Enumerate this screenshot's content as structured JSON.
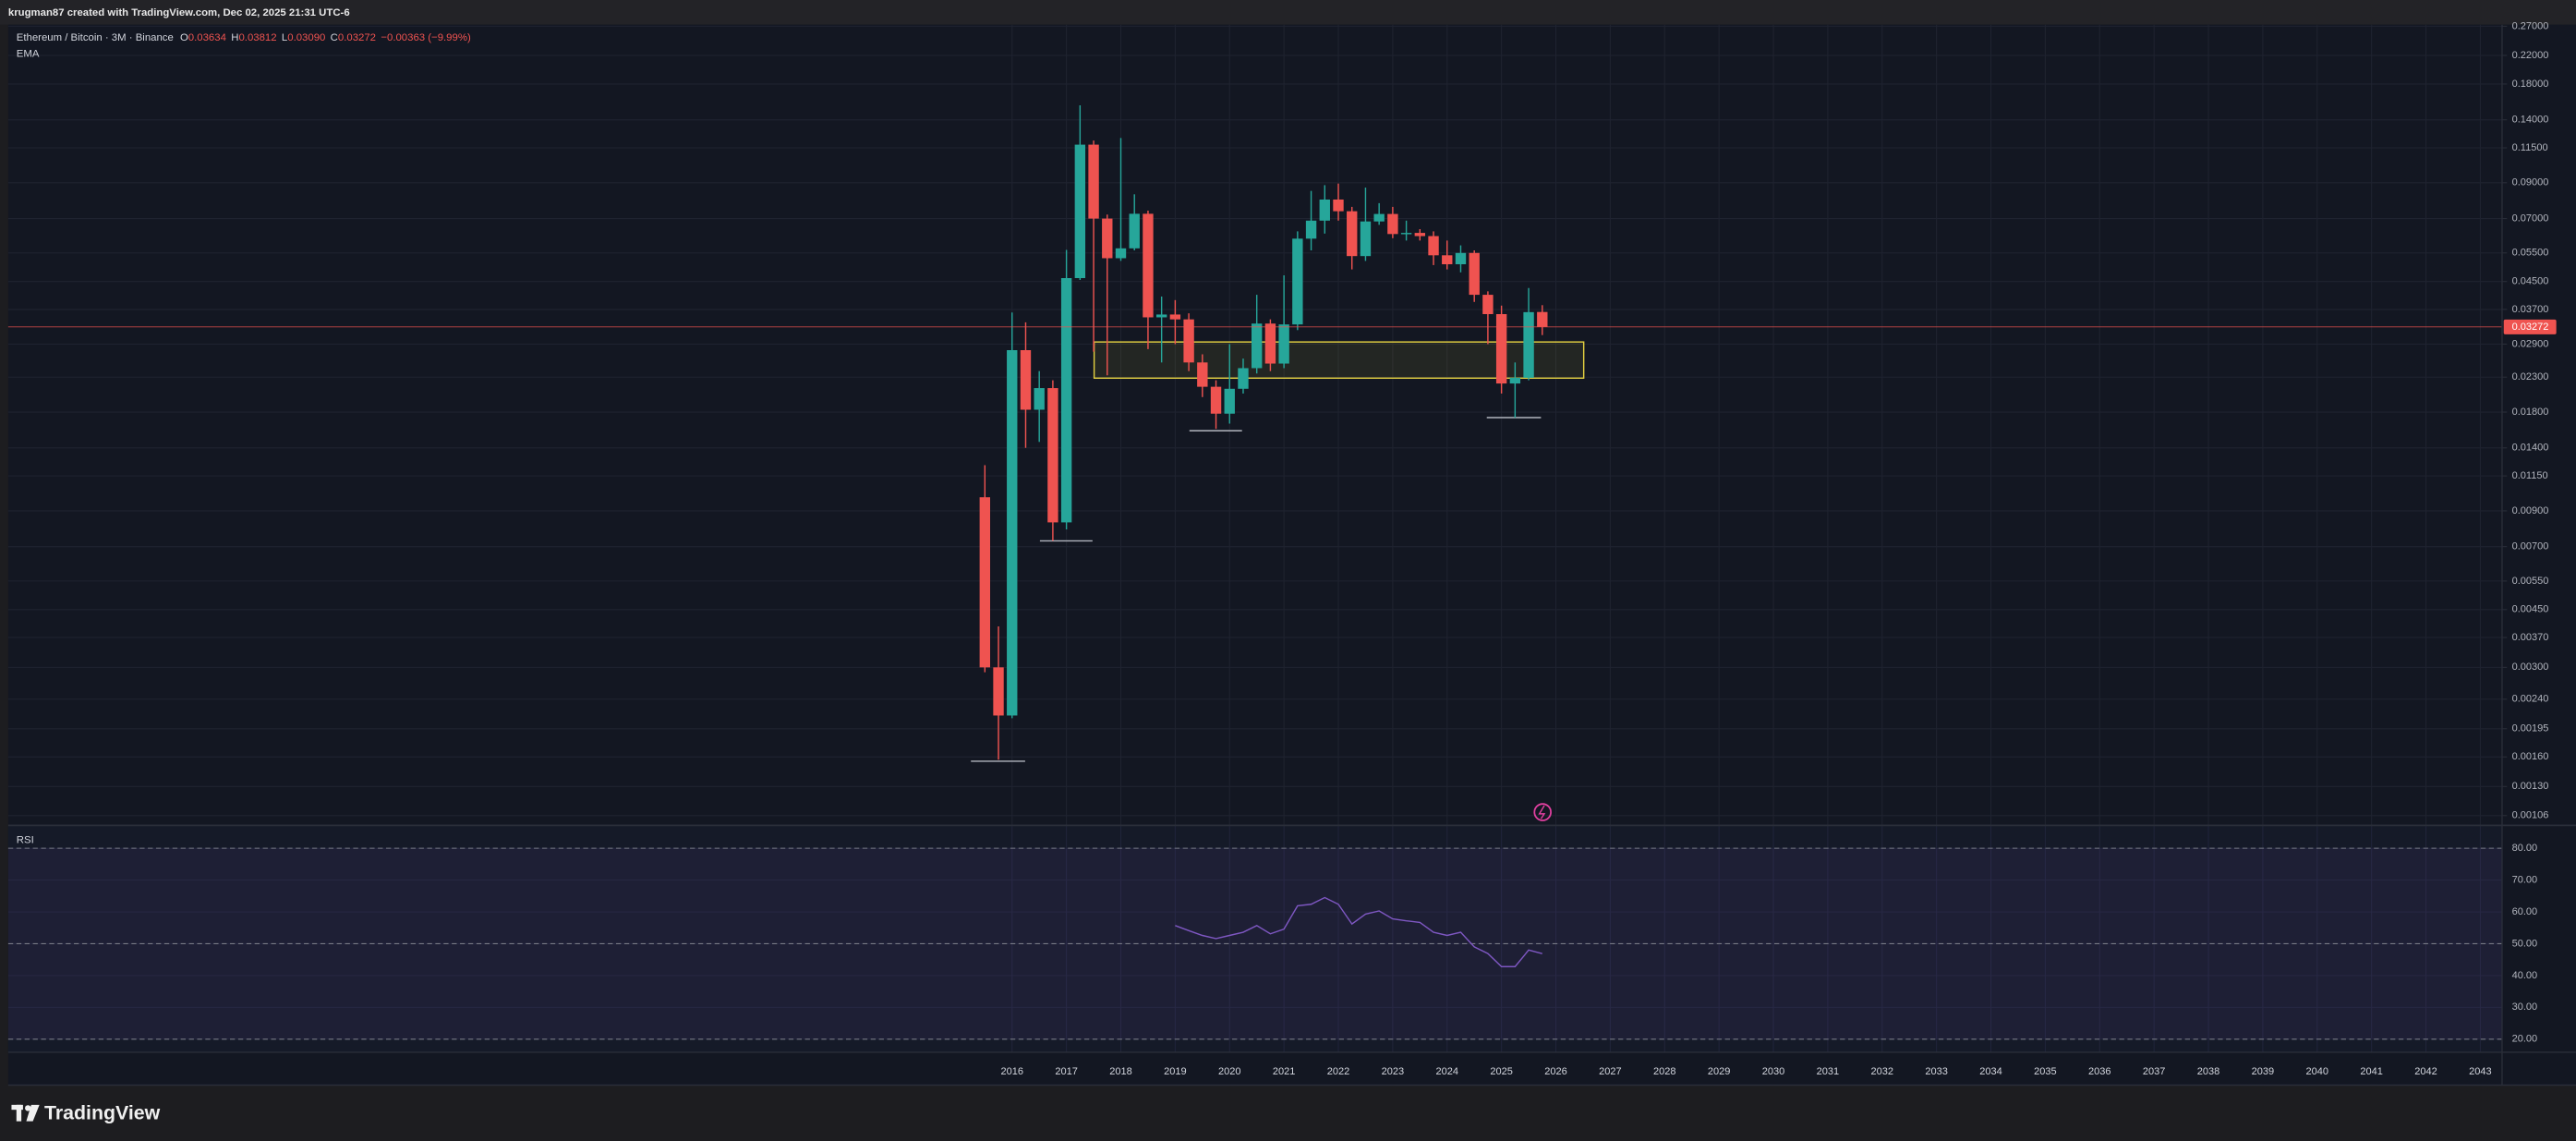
{
  "page": {
    "attribution": "krugman87 created with TradingView.com, Dec 02, 2025 21:31 UTC-6",
    "brand": "TradingView"
  },
  "chart_data": [
    {
      "type": "candlestick",
      "symbol": "Ethereum / Bitcoin · 3M · Binance",
      "ohlc_legend": [
        {
          "key": "O",
          "value": "0.03634"
        },
        {
          "key": "H",
          "value": "0.03812"
        },
        {
          "key": "L",
          "value": "0.03090"
        },
        {
          "key": "C",
          "value": "0.03272"
        }
      ],
      "change": "−0.00363 (−9.99%)",
      "indicator": "EMA",
      "up_color": "#26a69a",
      "down_color": "#ef5350",
      "log_scale": true,
      "grid": true,
      "x": [
        2015.5,
        2015.75,
        2016,
        2016.25,
        2016.5,
        2016.75,
        2017,
        2017.25,
        2017.5,
        2017.75,
        2018,
        2018.25,
        2018.5,
        2018.75,
        2019,
        2019.25,
        2019.5,
        2019.75,
        2020,
        2020.25,
        2020.5,
        2020.75,
        2021,
        2021.25,
        2021.5,
        2021.75,
        2022,
        2022.25,
        2022.5,
        2022.75,
        2023,
        2023.25,
        2023.5,
        2023.75,
        2024,
        2024.25,
        2024.5,
        2024.75,
        2025,
        2025.25,
        2025.5,
        2025.75
      ],
      "open": [
        0.0099,
        0.003,
        0.00214,
        0.0278,
        0.0183,
        0.0213,
        0.0083,
        0.0461,
        0.1176,
        0.07,
        0.053,
        0.0568,
        0.0724,
        0.035,
        0.0357,
        0.0345,
        0.0255,
        0.0215,
        0.0178,
        0.0212,
        0.0245,
        0.0335,
        0.0253,
        0.0333,
        0.0608,
        0.069,
        0.08,
        0.0737,
        0.0538,
        0.0686,
        0.0723,
        0.0628,
        0.0633,
        0.0619,
        0.0541,
        0.0508,
        0.055,
        0.041,
        0.0358,
        0.022,
        0.0229,
        0.03634
      ],
      "high": [
        0.0124,
        0.004,
        0.0362,
        0.0338,
        0.024,
        0.0225,
        0.0562,
        0.155,
        0.121,
        0.072,
        0.1232,
        0.083,
        0.074,
        0.0405,
        0.0395,
        0.036,
        0.027,
        0.0225,
        0.029,
        0.0262,
        0.041,
        0.0345,
        0.047,
        0.064,
        0.085,
        0.0885,
        0.0895,
        0.076,
        0.087,
        0.078,
        0.076,
        0.069,
        0.065,
        0.064,
        0.06,
        0.058,
        0.056,
        0.042,
        0.038,
        0.0255,
        0.043,
        0.03812
      ],
      "low": [
        0.0029,
        0.00157,
        0.0021,
        0.014,
        0.0146,
        0.0073,
        0.0079,
        0.0455,
        0.0275,
        0.0233,
        0.052,
        0.056,
        0.028,
        0.0255,
        0.029,
        0.024,
        0.02,
        0.016,
        0.0166,
        0.0205,
        0.0236,
        0.024,
        0.0245,
        0.032,
        0.056,
        0.063,
        0.069,
        0.049,
        0.052,
        0.067,
        0.061,
        0.06,
        0.06,
        0.0505,
        0.049,
        0.048,
        0.039,
        0.029,
        0.0205,
        0.0173,
        0.0225,
        0.0309
      ],
      "close": [
        0.003,
        0.00214,
        0.0278,
        0.0183,
        0.0213,
        0.0083,
        0.0461,
        0.1176,
        0.07,
        0.053,
        0.0568,
        0.0724,
        0.035,
        0.0357,
        0.0345,
        0.0255,
        0.0215,
        0.0178,
        0.0212,
        0.0245,
        0.0335,
        0.0253,
        0.0333,
        0.0608,
        0.069,
        0.08,
        0.0737,
        0.0538,
        0.0686,
        0.0723,
        0.0628,
        0.0633,
        0.0619,
        0.0541,
        0.0508,
        0.055,
        0.041,
        0.0358,
        0.022,
        0.0229,
        0.0363,
        0.03272
      ],
      "last_price": {
        "value": 0.03272,
        "label": "0.03272"
      },
      "xlim": [
        1997.54,
        2043.4
      ],
      "xticks": [
        2016,
        2017,
        2018,
        2019,
        2020,
        2021,
        2022,
        2023,
        2024,
        2025,
        2026,
        2027,
        2028,
        2029,
        2030,
        2031,
        2032,
        2033,
        2034,
        2035,
        2036,
        2037,
        2038,
        2039,
        2040,
        2041,
        2042,
        2043
      ],
      "ylim": [
        0.00099,
        0.273
      ],
      "yticks": [
        {
          "value": 0.27,
          "label": "0.27000"
        },
        {
          "value": 0.22,
          "label": "0.22000"
        },
        {
          "value": 0.18,
          "label": "0.18000"
        },
        {
          "value": 0.14,
          "label": "0.14000"
        },
        {
          "value": 0.115,
          "label": "0.11500"
        },
        {
          "value": 0.09,
          "label": "0.09000"
        },
        {
          "value": 0.07,
          "label": "0.07000"
        },
        {
          "value": 0.055,
          "label": "0.05500"
        },
        {
          "value": 0.045,
          "label": "0.04500"
        },
        {
          "value": 0.037,
          "label": "0.03700"
        },
        {
          "value": 0.029,
          "label": "0.02900"
        },
        {
          "value": 0.023,
          "label": "0.02300"
        },
        {
          "value": 0.018,
          "label": "0.01800"
        },
        {
          "value": 0.014,
          "label": "0.01400"
        },
        {
          "value": 0.0115,
          "label": "0.01150"
        },
        {
          "value": 0.009,
          "label": "0.00900"
        },
        {
          "value": 0.007,
          "label": "0.00700"
        },
        {
          "value": 0.0055,
          "label": "0.00550"
        },
        {
          "value": 0.0045,
          "label": "0.00450"
        },
        {
          "value": 0.0037,
          "label": "0.00370"
        },
        {
          "value": 0.003,
          "label": "0.00300"
        },
        {
          "value": 0.0024,
          "label": "0.00240"
        },
        {
          "value": 0.00195,
          "label": "0.00195"
        },
        {
          "value": 0.0016,
          "label": "0.00160"
        },
        {
          "value": 0.0013,
          "label": "0.00130"
        },
        {
          "value": 0.00106,
          "label": "0.00106"
        }
      ]
    },
    {
      "type": "line",
      "title": "RSI",
      "color": "#7e57c2",
      "x": [
        2019,
        2019.25,
        2019.5,
        2019.75,
        2020,
        2020.25,
        2020.5,
        2020.75,
        2021,
        2021.25,
        2021.5,
        2021.75,
        2022,
        2022.25,
        2022.5,
        2022.75,
        2023,
        2023.25,
        2023.5,
        2023.75,
        2024,
        2024.25,
        2024.5,
        2024.75,
        2025,
        2025.25,
        2025.5,
        2025.75
      ],
      "values": [
        55.7,
        54.1,
        52.6,
        51.6,
        52.6,
        53.6,
        55.7,
        53.1,
        54.6,
        61.9,
        62.4,
        64.5,
        62.4,
        56.2,
        59.3,
        60.3,
        57.8,
        57.2,
        56.7,
        53.6,
        52.6,
        53.6,
        49.0,
        46.9,
        42.8,
        42.8,
        48.0,
        46.9
      ],
      "upper_band": 80,
      "middle_band": 50,
      "lower_band": 20,
      "xlim": [
        1997.54,
        2043.4
      ],
      "ylim": [
        15.9,
        87.2
      ],
      "yticks": [
        {
          "value": 80,
          "label": "80.00"
        },
        {
          "value": 70,
          "label": "70.00"
        },
        {
          "value": 60,
          "label": "60.00"
        },
        {
          "value": 50,
          "label": "50.00"
        },
        {
          "value": 40,
          "label": "40.00"
        },
        {
          "value": 30,
          "label": "30.00"
        },
        {
          "value": 20,
          "label": "20.00"
        }
      ]
    }
  ]
}
